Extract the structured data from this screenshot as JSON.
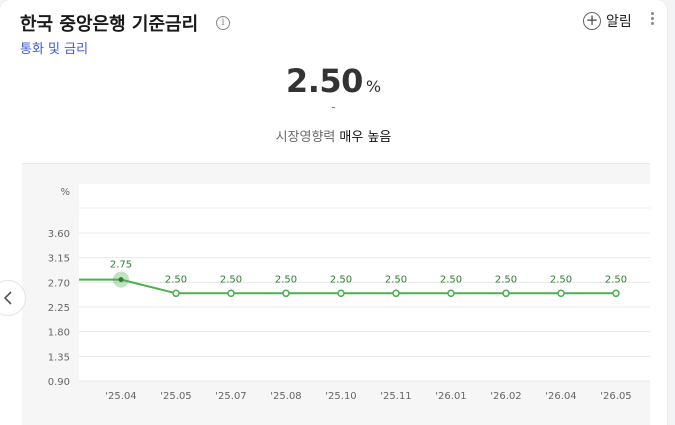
{
  "header": {
    "title": "한국 중앙은행 기준금리",
    "info_icon": "i",
    "subtitle": "통화 및 금리",
    "alarm_label": "알림",
    "alarm_icon": "+"
  },
  "summary": {
    "value": "2.50",
    "unit": "%",
    "change": "-",
    "impact_label": "시장영향력",
    "impact_value": "매우 높음"
  },
  "icons": {
    "info": "info-icon",
    "alarm": "plus-circle-icon",
    "more": "more-vertical-icon",
    "prev": "chevron-left-icon"
  },
  "chart_data": {
    "type": "line",
    "ylabel": "%",
    "ylim": [
      0.9,
      3.6
    ],
    "yticks": [
      "0.90",
      "1.35",
      "1.80",
      "2.25",
      "2.70",
      "3.15",
      "3.60"
    ],
    "categories": [
      "",
      "'25.04",
      "'25.05",
      "'25.07",
      "'25.08",
      "'25.10",
      "'25.11",
      "'26.01",
      "'26.02",
      "'26.04",
      "'26.05"
    ],
    "values": [
      2.75,
      2.75,
      2.5,
      2.5,
      2.5,
      2.5,
      2.5,
      2.5,
      2.5,
      2.5,
      2.5
    ],
    "data_labels": [
      "",
      "2.75",
      "2.50",
      "2.50",
      "2.50",
      "2.50",
      "2.50",
      "2.50",
      "2.50",
      "2.50",
      "2.50"
    ],
    "highlight_index": 1,
    "color": "#4caf50",
    "grid": true
  }
}
